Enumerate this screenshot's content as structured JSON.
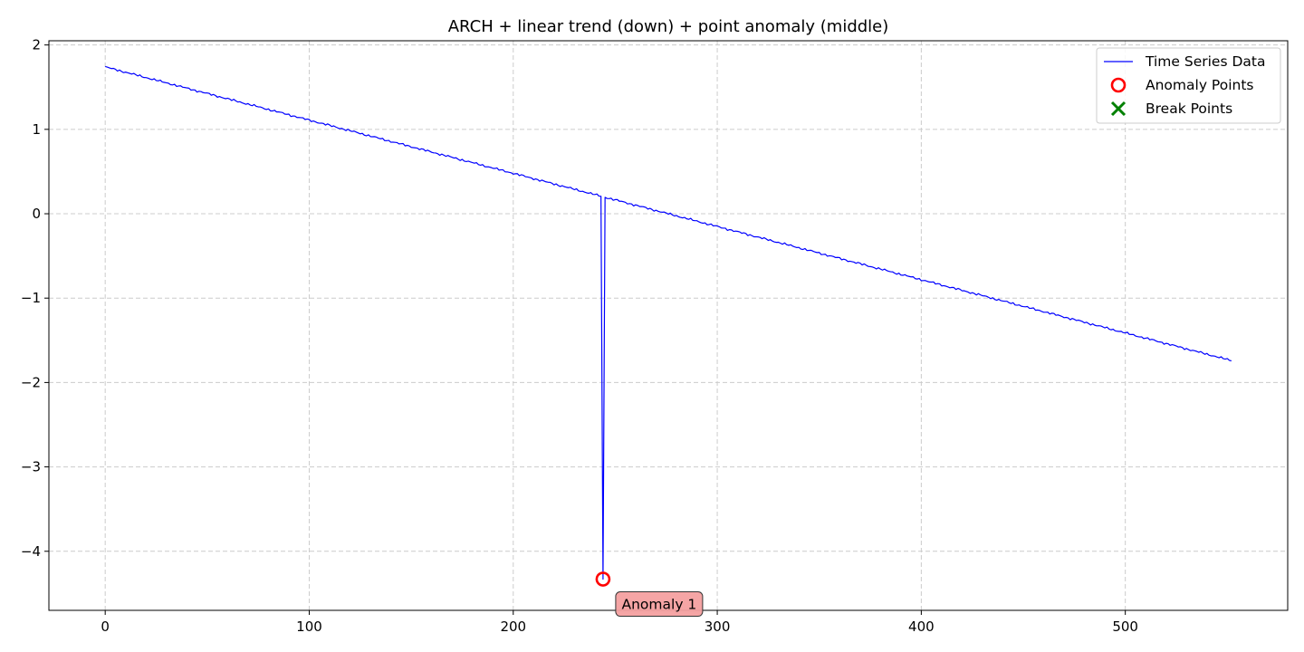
{
  "chart_data": {
    "type": "line",
    "title": "ARCH + linear trend (down) + point anomaly (middle)",
    "xlabel": "",
    "ylabel": "",
    "xlim": [
      -27.6,
      579.6
    ],
    "ylim": [
      -4.7,
      2.05
    ],
    "x_ticks": [
      0,
      100,
      200,
      300,
      400,
      500
    ],
    "x_tick_labels": [
      "0",
      "100",
      "200",
      "300",
      "400",
      "500"
    ],
    "y_ticks": [
      2,
      1,
      0,
      -1,
      -2,
      -3,
      -4
    ],
    "y_tick_labels": [
      "2",
      "1",
      "0",
      "−1",
      "−2",
      "−3",
      "−4"
    ],
    "grid": true,
    "legend_position": "top-right",
    "series": [
      {
        "name": "Time Series Data",
        "kind": "line",
        "color": "#0000ff",
        "trend_start": {
          "x": 0,
          "y": 1.74
        },
        "trend_end": {
          "x": 552,
          "y": -1.74
        },
        "noise_amplitude": 0.012,
        "points": [
          [
            0,
            1.75
          ],
          [
            2,
            1.71
          ],
          [
            5,
            1.72
          ],
          [
            10,
            1.69
          ],
          [
            20,
            1.64
          ],
          [
            30,
            1.58
          ],
          [
            40,
            1.51
          ],
          [
            50,
            1.44
          ],
          [
            60,
            1.38
          ],
          [
            70,
            1.31
          ],
          [
            80,
            1.24
          ],
          [
            90,
            1.17
          ],
          [
            100,
            1.11
          ],
          [
            110,
            1.05
          ],
          [
            120,
            0.98
          ],
          [
            130,
            0.92
          ],
          [
            140,
            0.86
          ],
          [
            150,
            0.79
          ],
          [
            160,
            0.73
          ],
          [
            170,
            0.67
          ],
          [
            180,
            0.61
          ],
          [
            190,
            0.54
          ],
          [
            200,
            0.48
          ],
          [
            210,
            0.42
          ],
          [
            220,
            0.36
          ],
          [
            230,
            0.3
          ],
          [
            240,
            0.23
          ],
          [
            243,
            0.21
          ],
          [
            244,
            -4.33
          ],
          [
            245,
            0.19
          ],
          [
            246,
            0.2
          ],
          [
            250,
            0.17
          ],
          [
            260,
            0.11
          ],
          [
            270,
            0.05
          ],
          [
            280,
            -0.01
          ],
          [
            290,
            -0.07
          ],
          [
            300,
            -0.13
          ],
          [
            310,
            -0.2
          ],
          [
            320,
            -0.26
          ],
          [
            330,
            -0.32
          ],
          [
            340,
            -0.38
          ],
          [
            350,
            -0.45
          ],
          [
            360,
            -0.51
          ],
          [
            370,
            -0.57
          ],
          [
            380,
            -0.63
          ],
          [
            390,
            -0.7
          ],
          [
            400,
            -0.76
          ],
          [
            410,
            -0.82
          ],
          [
            420,
            -0.88
          ],
          [
            430,
            -0.95
          ],
          [
            440,
            -1.01
          ],
          [
            450,
            -1.07
          ],
          [
            460,
            -1.13
          ],
          [
            470,
            -1.19
          ],
          [
            480,
            -1.26
          ],
          [
            490,
            -1.32
          ],
          [
            500,
            -1.38
          ],
          [
            510,
            -1.44
          ],
          [
            520,
            -1.5
          ],
          [
            530,
            -1.57
          ],
          [
            540,
            -1.63
          ],
          [
            548,
            -1.7
          ],
          [
            552,
            -1.74
          ]
        ]
      },
      {
        "name": "Anomaly Points",
        "kind": "scatter",
        "marker": "circle-open",
        "color": "#ff0000",
        "points": [
          [
            244,
            -4.33
          ]
        ]
      },
      {
        "name": "Break Points",
        "kind": "scatter",
        "marker": "x",
        "color": "#008000",
        "points": []
      }
    ],
    "annotations": [
      {
        "text": "Anomaly 1",
        "x": 244,
        "y": -4.33,
        "bg_color": "#f4a0a0"
      }
    ]
  }
}
